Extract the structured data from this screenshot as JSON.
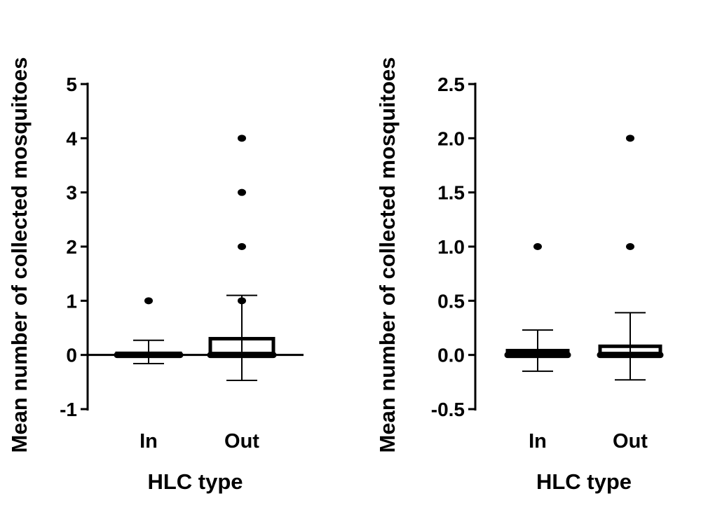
{
  "chart_data": [
    {
      "type": "box",
      "title": "",
      "xlabel": "HLC type",
      "ylabel": "Mean number of collected mosquitoes",
      "ylim": [
        -1,
        5
      ],
      "yticks": [
        "-1",
        "0",
        "1",
        "2",
        "3",
        "4",
        "5"
      ],
      "ytick_values": [
        -1,
        0,
        1,
        2,
        3,
        4,
        5
      ],
      "categories": [
        "In",
        "Out"
      ],
      "boxes": [
        {
          "name": "In",
          "q1": 0,
          "median": 0,
          "q3": 0.03,
          "whisker_low": -0.16,
          "whisker_high": 0.27,
          "outliers": [
            1
          ]
        },
        {
          "name": "Out",
          "q1": 0,
          "median": 0,
          "q3": 0.3,
          "whisker_low": -0.47,
          "whisker_high": 1.1,
          "outliers": [
            1,
            2,
            3,
            4
          ]
        }
      ],
      "zero_line": true,
      "grid": false
    },
    {
      "type": "box",
      "title": "",
      "xlabel": "HLC type",
      "ylabel": "Mean number of collected mosquitoes",
      "ylim": [
        -0.5,
        2.5
      ],
      "yticks": [
        "-0.5",
        "0.0",
        "0.5",
        "1.0",
        "1.5",
        "2.0",
        "2.5"
      ],
      "ytick_values": [
        -0.5,
        0,
        0.5,
        1,
        1.5,
        2,
        2.5
      ],
      "categories": [
        "In",
        "Out"
      ],
      "boxes": [
        {
          "name": "In",
          "q1": 0,
          "median": 0,
          "q3": 0.04,
          "whisker_low": -0.15,
          "whisker_high": 0.23,
          "outliers": [
            1
          ]
        },
        {
          "name": "Out",
          "q1": 0,
          "median": 0,
          "q3": 0.08,
          "whisker_low": -0.23,
          "whisker_high": 0.39,
          "outliers": [
            1,
            2
          ]
        }
      ],
      "zero_line": false,
      "grid": false
    }
  ]
}
